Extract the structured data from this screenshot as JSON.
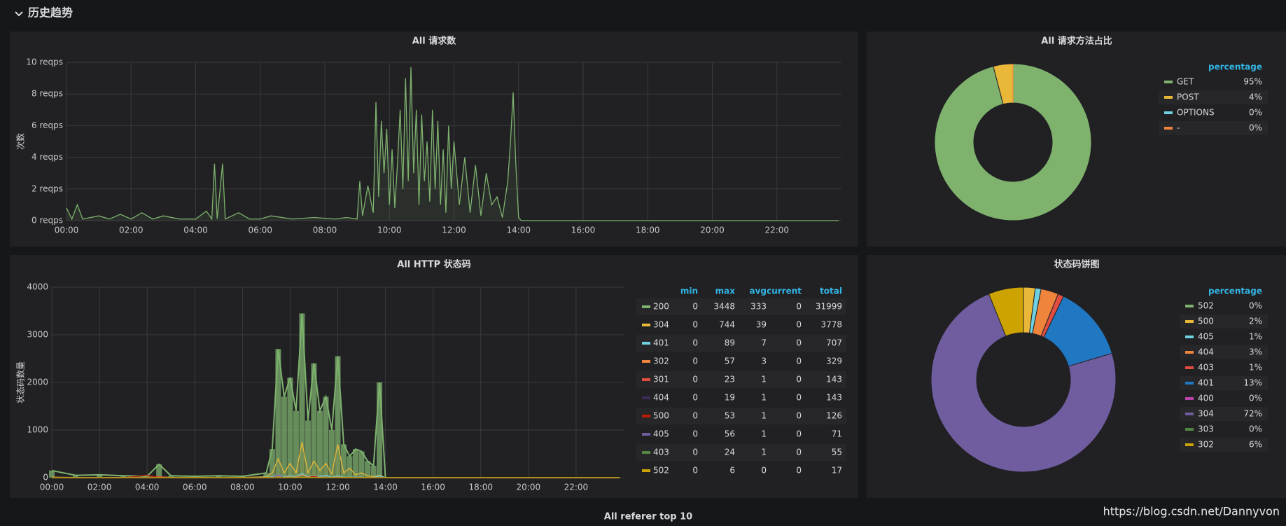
{
  "header": {
    "section_title": "历史趋势"
  },
  "footer": {
    "next_panel_title": "All referer top 10",
    "watermark": "https://blog.csdn.net/Dannyvon"
  },
  "chart_data": [
    {
      "type": "line",
      "title": "All 请求数",
      "ylabel": "次数",
      "grid": true,
      "xlim": [
        "00:00",
        "24:00"
      ],
      "xticks": [
        "00:00",
        "02:00",
        "04:00",
        "06:00",
        "08:00",
        "10:00",
        "12:00",
        "14:00",
        "16:00",
        "18:00",
        "20:00",
        "22:00"
      ],
      "ylim": [
        0,
        10
      ],
      "yticks": [
        {
          "value": 0,
          "label": "0 reqps"
        },
        {
          "value": 2,
          "label": "2 reqps"
        },
        {
          "value": 4,
          "label": "4 reqps"
        },
        {
          "value": 6,
          "label": "6 reqps"
        },
        {
          "value": 8,
          "label": "8 reqps"
        },
        {
          "value": 10,
          "label": "10 reqps"
        }
      ],
      "x": [
        "00:00",
        "00:10",
        "00:20",
        "00:30",
        "01:00",
        "01:20",
        "01:40",
        "02:00",
        "02:20",
        "02:40",
        "03:00",
        "03:30",
        "04:00",
        "04:20",
        "04:30",
        "04:35",
        "04:40",
        "04:50",
        "04:55",
        "05:20",
        "05:40",
        "06:00",
        "06:20",
        "07:00",
        "07:40",
        "08:20",
        "08:40",
        "09:00",
        "09:05",
        "09:10",
        "09:20",
        "09:30",
        "09:35",
        "09:40",
        "09:45",
        "09:50",
        "09:55",
        "10:00",
        "10:05",
        "10:10",
        "10:15",
        "10:20",
        "10:25",
        "10:30",
        "10:35",
        "10:40",
        "10:45",
        "10:50",
        "10:55",
        "11:00",
        "11:05",
        "11:10",
        "11:15",
        "11:20",
        "11:25",
        "11:30",
        "11:35",
        "11:40",
        "11:45",
        "11:50",
        "11:55",
        "12:00",
        "12:10",
        "12:20",
        "12:30",
        "12:40",
        "12:50",
        "13:00",
        "13:10",
        "13:20",
        "13:30",
        "13:40",
        "13:45",
        "13:50",
        "13:55",
        "14:00",
        "14:05",
        "23:55"
      ],
      "series": [
        {
          "color": "#7eb26d",
          "values": [
            0.8,
            0.1,
            1.0,
            0.1,
            0.3,
            0.1,
            0.4,
            0.1,
            0.5,
            0.1,
            0.3,
            0.1,
            0.1,
            0.6,
            0.1,
            3.6,
            0.1,
            3.6,
            0.1,
            0.5,
            0.1,
            0.1,
            0.3,
            0.1,
            0.2,
            0.1,
            0.2,
            0.1,
            2.5,
            0.3,
            2.2,
            0.5,
            7.5,
            1.5,
            6.3,
            3.0,
            5.8,
            1.0,
            4.5,
            0.8,
            3.6,
            7.0,
            2.0,
            9.0,
            2.5,
            9.7,
            3.0,
            7.0,
            1.0,
            6.7,
            2.5,
            5.0,
            1.2,
            7.0,
            2.0,
            6.3,
            1.0,
            4.5,
            0.5,
            6.0,
            2.0,
            5.0,
            1.0,
            4.0,
            0.5,
            3.5,
            0.3,
            3.0,
            1.0,
            1.5,
            0.2,
            2.5,
            5.0,
            8.1,
            3.5,
            0.2,
            0,
            0
          ]
        }
      ]
    },
    {
      "type": "pie",
      "title": "All 请求方法占比",
      "legend_header": "percentage",
      "categories": [
        "GET",
        "POST",
        "OPTIONS",
        "-"
      ],
      "colors": [
        "#7eb26d",
        "#eab839",
        "#6ed0e0",
        "#ef843c"
      ],
      "values": [
        95,
        4,
        0,
        0
      ],
      "value_labels": [
        "95%",
        "4%",
        "0%",
        "0%"
      ]
    },
    {
      "type": "line",
      "title": "All HTTP 状态码",
      "ylabel": "状态码数量",
      "grid": true,
      "xlim": [
        "00:00",
        "24:00"
      ],
      "xticks": [
        "00:00",
        "02:00",
        "04:00",
        "06:00",
        "08:00",
        "10:00",
        "12:00",
        "14:00",
        "16:00",
        "18:00",
        "20:00",
        "22:00"
      ],
      "ylim": [
        0,
        4000
      ],
      "yticks": [
        0,
        1000,
        2000,
        3000,
        4000
      ],
      "legend_columns": [
        "min",
        "max",
        "avg",
        "current",
        "total"
      ],
      "x": [
        "00:00",
        "01:00",
        "02:00",
        "03:00",
        "04:00",
        "04:30",
        "05:00",
        "06:00",
        "07:00",
        "08:00",
        "09:00",
        "09:15",
        "09:30",
        "09:45",
        "10:00",
        "10:15",
        "10:30",
        "10:45",
        "11:00",
        "11:15",
        "11:30",
        "11:45",
        "12:00",
        "12:15",
        "12:30",
        "12:45",
        "13:00",
        "13:15",
        "13:30",
        "13:45",
        "14:00",
        "15:00",
        "23:50"
      ],
      "series": [
        {
          "name": "200",
          "color": "#7eb26d",
          "bars": true,
          "legend_values": [
            0,
            3448,
            333,
            0,
            31999
          ],
          "values": [
            150,
            50,
            60,
            40,
            30,
            280,
            40,
            30,
            40,
            30,
            100,
            600,
            2700,
            1700,
            2100,
            1400,
            3448,
            1200,
            2400,
            1400,
            1700,
            1000,
            2550,
            700,
            450,
            600,
            550,
            350,
            250,
            2000,
            0,
            0,
            0
          ]
        },
        {
          "name": "304",
          "color": "#eab839",
          "legend_values": [
            0,
            744,
            39,
            0,
            3778
          ],
          "values": [
            10,
            5,
            5,
            5,
            5,
            20,
            5,
            5,
            5,
            5,
            20,
            100,
            400,
            100,
            300,
            100,
            744,
            100,
            350,
            150,
            300,
            80,
            700,
            100,
            200,
            60,
            100,
            40,
            20,
            50,
            0,
            0,
            0
          ]
        },
        {
          "name": "401",
          "color": "#6ed0e0",
          "legend_values": [
            0,
            89,
            7,
            0,
            707
          ],
          "values": [
            5,
            2,
            2,
            2,
            2,
            5,
            2,
            2,
            2,
            2,
            10,
            20,
            60,
            20,
            40,
            20,
            89,
            20,
            40,
            20,
            50,
            10,
            40,
            10,
            10,
            10,
            10,
            5,
            5,
            40,
            0,
            0,
            0
          ]
        },
        {
          "name": "302",
          "color": "#ef843c",
          "legend_values": [
            0,
            57,
            3,
            0,
            329
          ],
          "values": [
            0,
            0,
            0,
            0,
            0,
            0,
            0,
            0,
            0,
            0,
            0,
            10,
            20,
            10,
            15,
            10,
            57,
            10,
            30,
            5,
            10,
            5,
            15,
            5,
            5,
            0,
            5,
            0,
            0,
            5,
            0,
            0,
            0
          ]
        },
        {
          "name": "301",
          "color": "#e24d42",
          "legend_values": [
            0,
            23,
            1,
            0,
            143
          ],
          "values": [
            0,
            0,
            0,
            0,
            0,
            23,
            0,
            0,
            0,
            0,
            0,
            0,
            5,
            0,
            5,
            0,
            20,
            0,
            10,
            0,
            5,
            0,
            5,
            0,
            0,
            0,
            0,
            0,
            0,
            0,
            0,
            0,
            0
          ]
        },
        {
          "name": "404",
          "color": "#3f2b5b",
          "legend_values": [
            0,
            19,
            1,
            0,
            143
          ],
          "values": [
            0,
            0,
            0,
            0,
            0,
            0,
            0,
            0,
            0,
            0,
            0,
            0,
            5,
            0,
            5,
            0,
            19,
            0,
            5,
            0,
            5,
            0,
            5,
            0,
            0,
            0,
            0,
            0,
            0,
            0,
            0,
            0,
            0
          ]
        },
        {
          "name": "500",
          "color": "#bf1b00",
          "legend_values": [
            0,
            53,
            1,
            0,
            126
          ],
          "values": [
            0,
            0,
            0,
            0,
            53,
            0,
            0,
            0,
            0,
            0,
            0,
            0,
            5,
            0,
            5,
            0,
            10,
            0,
            30,
            0,
            5,
            0,
            5,
            0,
            0,
            0,
            0,
            0,
            0,
            0,
            0,
            0,
            0
          ]
        },
        {
          "name": "405",
          "color": "#705da0",
          "legend_values": [
            0,
            56,
            1,
            0,
            71
          ],
          "values": [
            0,
            0,
            0,
            0,
            0,
            0,
            0,
            0,
            0,
            0,
            0,
            0,
            56,
            0,
            5,
            0,
            5,
            0,
            5,
            0,
            0,
            0,
            0,
            0,
            0,
            0,
            0,
            0,
            0,
            0,
            0,
            0,
            0
          ]
        },
        {
          "name": "403",
          "color": "#508642",
          "legend_values": [
            0,
            24,
            1,
            0,
            55
          ],
          "values": [
            0,
            0,
            0,
            0,
            0,
            0,
            0,
            0,
            0,
            0,
            0,
            0,
            5,
            0,
            5,
            0,
            24,
            0,
            5,
            0,
            5,
            0,
            5,
            0,
            0,
            0,
            0,
            0,
            0,
            0,
            0,
            0,
            0
          ]
        },
        {
          "name": "502",
          "color": "#cca300",
          "legend_values": [
            0,
            6,
            0,
            0,
            17
          ],
          "values": [
            0,
            0,
            0,
            0,
            0,
            0,
            0,
            0,
            0,
            0,
            0,
            0,
            0,
            0,
            0,
            0,
            6,
            0,
            2,
            0,
            0,
            0,
            0,
            0,
            0,
            0,
            0,
            0,
            0,
            0,
            0,
            0,
            0
          ]
        }
      ]
    },
    {
      "type": "pie",
      "title": "状态码饼图",
      "legend_header": "percentage",
      "categories": [
        "502",
        "500",
        "405",
        "404",
        "403",
        "401",
        "400",
        "304",
        "303",
        "302"
      ],
      "colors": [
        "#7eb26d",
        "#eab839",
        "#6ed0e0",
        "#ef843c",
        "#e24d42",
        "#1f78c1",
        "#ba43a9",
        "#705da0",
        "#508642",
        "#cca300"
      ],
      "values": [
        0,
        2,
        1,
        3,
        1,
        13,
        0,
        72,
        0,
        6
      ],
      "value_labels": [
        "0%",
        "2%",
        "1%",
        "3%",
        "1%",
        "13%",
        "0%",
        "72%",
        "0%",
        "6%"
      ]
    }
  ]
}
